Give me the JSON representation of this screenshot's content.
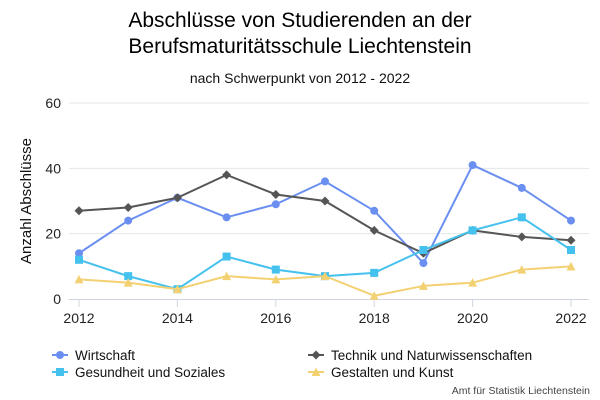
{
  "chart_data": {
    "type": "line",
    "title_lines": [
      "Abschlüsse von Studierenden an der",
      "Berufsmaturitätsschule Liechtenstein"
    ],
    "subtitle": "nach Schwerpunkt von 2012 - 2022",
    "xlabel": "",
    "ylabel": "Anzahl Abschlüsse",
    "x": [
      2012,
      2013,
      2014,
      2015,
      2016,
      2017,
      2018,
      2019,
      2020,
      2021,
      2022
    ],
    "xticks": [
      "2012",
      "2014",
      "2016",
      "2018",
      "2020",
      "2022"
    ],
    "yticks": [
      "0",
      "20",
      "40",
      "60"
    ],
    "ylim": [
      0,
      60
    ],
    "grid": "horizontal",
    "legend_position": "bottom",
    "series": [
      {
        "name": "Wirtschaft",
        "color": "#6a8ff0",
        "marker": "circle",
        "values": [
          14,
          24,
          31,
          25,
          29,
          36,
          27,
          11,
          41,
          34,
          24
        ]
      },
      {
        "name": "Technik und Naturwissenschaften",
        "color": "#555555",
        "marker": "diamond",
        "values": [
          27,
          28,
          31,
          38,
          32,
          30,
          21,
          14,
          21,
          19,
          18
        ]
      },
      {
        "name": "Gesundheit und Soziales",
        "color": "#45c1ee",
        "marker": "square",
        "values": [
          12,
          7,
          3,
          13,
          9,
          7,
          8,
          15,
          21,
          25,
          15
        ]
      },
      {
        "name": "Gestalten und Kunst",
        "color": "#f3d173",
        "marker": "triangle",
        "values": [
          6,
          5,
          3,
          7,
          6,
          7,
          1,
          4,
          5,
          9,
          10
        ]
      }
    ],
    "credit": "Amt für Statistik Liechtenstein"
  }
}
